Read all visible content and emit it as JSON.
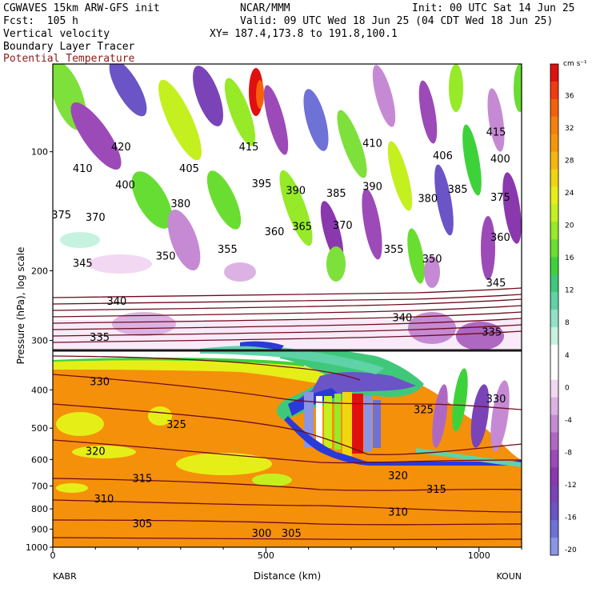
{
  "header": {
    "model": "CGWAVES 15km ARW-GFS init",
    "org": "NCAR/MMM",
    "init": "Init: 00 UTC Sat 14 Jun 25",
    "fcst": "Fcst:  105 h",
    "valid": "Valid: 09 UTC Wed 18 Jun 25 (04 CDT Wed 18 Jun 25)",
    "field1": "Vertical velocity",
    "field2": "Boundary Layer Tracer",
    "field3": "Potential Temperature",
    "xy": "XY= 187.4,173.8 to 191.8,100.1"
  },
  "colors": {
    "theta_label": "#8b1a1a",
    "theta_line": "#6e0c1c",
    "tracer_orange": "#f5900a",
    "tropopause_line": "#1a1a1a"
  },
  "chart_data": {
    "type": "heatmap",
    "title": "",
    "xlabel": "Distance (km)",
    "ylabel": "Pressure (hPa), log scale",
    "x_ticks": [
      "0",
      "500",
      "1000"
    ],
    "y_ticks": [
      "100",
      "200",
      "300",
      "400",
      "500",
      "600",
      "700",
      "800",
      "900",
      "1000"
    ],
    "x_endpoint_labels": [
      "KABR",
      "KOUN"
    ],
    "xlim": [
      0,
      1100
    ],
    "ylim": [
      1000,
      60
    ],
    "y_scale": "log",
    "colorbar": {
      "unit": "cm s⁻¹",
      "tick_labels": [
        "36",
        "32",
        "28",
        "24",
        "20",
        "16",
        "12",
        "8",
        "4",
        "0",
        "-4",
        "-8",
        "-12",
        "-16",
        "-20"
      ],
      "colors": [
        "#e01010",
        "#f23a10",
        "#f6600a",
        "#f5800a",
        "#f5960a",
        "#f6b610",
        "#f0d610",
        "#e6ee18",
        "#c4f020",
        "#96ea28",
        "#6ade30",
        "#3ed23a",
        "#40c87a",
        "#5fd2a8",
        "#92e2c6",
        "#c6f2e0",
        "#ffffff",
        "#ffffff",
        "#f2d8f2",
        "#dcb2e4",
        "#c68ad4",
        "#ae68c2",
        "#9c4ab8",
        "#8a38ae",
        "#7a44b8",
        "#6a54c6",
        "#6e72d6",
        "#8c94e4"
      ]
    },
    "theta_contours": [
      {
        "label": "420",
        "x": 160,
        "p": 97
      },
      {
        "label": "415",
        "x": 460,
        "p": 97
      },
      {
        "label": "410",
        "x": 750,
        "p": 95
      },
      {
        "label": "415",
        "x": 1040,
        "p": 89
      },
      {
        "label": "410",
        "x": 70,
        "p": 110
      },
      {
        "label": "405",
        "x": 320,
        "p": 110
      },
      {
        "label": "406",
        "x": 915,
        "p": 102
      },
      {
        "label": "400",
        "x": 1050,
        "p": 104
      },
      {
        "label": "400",
        "x": 170,
        "p": 121
      },
      {
        "label": "395",
        "x": 490,
        "p": 120
      },
      {
        "label": "390",
        "x": 570,
        "p": 125
      },
      {
        "label": "385",
        "x": 665,
        "p": 127
      },
      {
        "label": "390",
        "x": 750,
        "p": 122
      },
      {
        "label": "385",
        "x": 950,
        "p": 124
      },
      {
        "label": "375",
        "x": 1050,
        "p": 130
      },
      {
        "label": "380",
        "x": 300,
        "p": 135
      },
      {
        "label": "380",
        "x": 880,
        "p": 131
      },
      {
        "label": "375",
        "x": 20,
        "p": 144
      },
      {
        "label": "370",
        "x": 100,
        "p": 146
      },
      {
        "label": "365",
        "x": 585,
        "p": 154
      },
      {
        "label": "370",
        "x": 680,
        "p": 153
      },
      {
        "label": "360",
        "x": 520,
        "p": 159
      },
      {
        "label": "360",
        "x": 1050,
        "p": 164
      },
      {
        "label": "355",
        "x": 410,
        "p": 176
      },
      {
        "label": "355",
        "x": 800,
        "p": 176
      },
      {
        "label": "350",
        "x": 265,
        "p": 183
      },
      {
        "label": "350",
        "x": 890,
        "p": 186
      },
      {
        "label": "345",
        "x": 70,
        "p": 191
      },
      {
        "label": "345",
        "x": 1040,
        "p": 214
      },
      {
        "label": "340",
        "x": 150,
        "p": 238
      },
      {
        "label": "340",
        "x": 820,
        "p": 262
      },
      {
        "label": "335",
        "x": 110,
        "p": 294
      },
      {
        "label": "335",
        "x": 1030,
        "p": 285
      },
      {
        "label": "330",
        "x": 110,
        "p": 380
      },
      {
        "label": "330",
        "x": 1040,
        "p": 420
      },
      {
        "label": "325",
        "x": 290,
        "p": 488
      },
      {
        "label": "325",
        "x": 870,
        "p": 448
      },
      {
        "label": "320",
        "x": 100,
        "p": 570
      },
      {
        "label": "320",
        "x": 810,
        "p": 657
      },
      {
        "label": "315",
        "x": 210,
        "p": 668
      },
      {
        "label": "315",
        "x": 900,
        "p": 712
      },
      {
        "label": "310",
        "x": 120,
        "p": 752
      },
      {
        "label": "310",
        "x": 810,
        "p": 812
      },
      {
        "label": "305",
        "x": 210,
        "p": 870
      },
      {
        "label": "300",
        "x": 490,
        "p": 920
      },
      {
        "label": "305",
        "x": 560,
        "p": 920
      }
    ]
  }
}
